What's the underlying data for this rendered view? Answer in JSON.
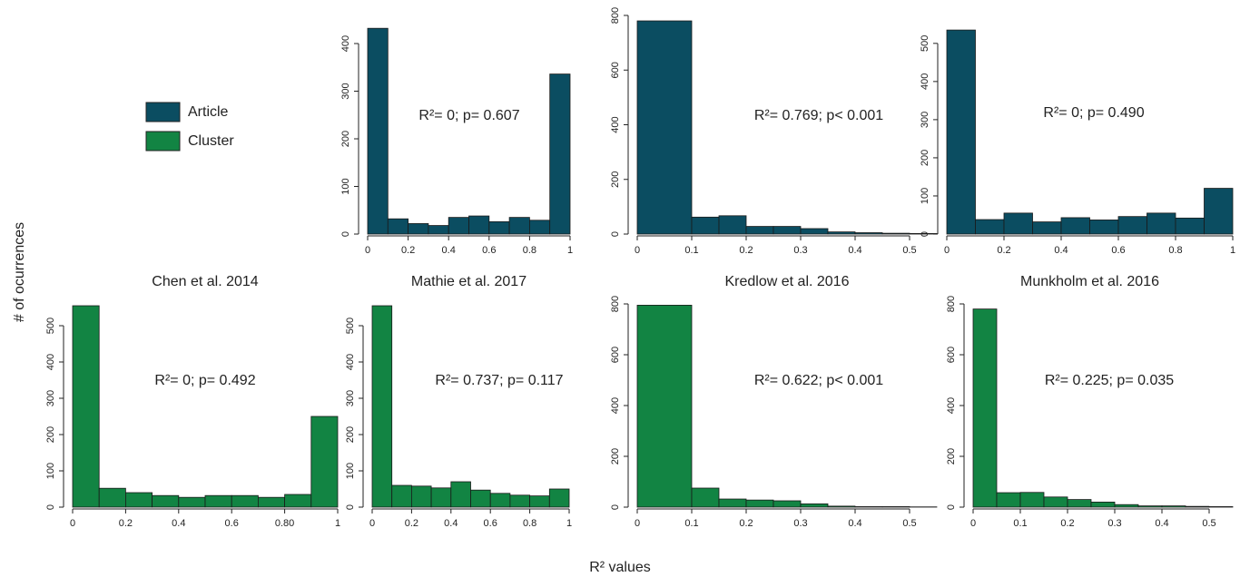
{
  "x_label": "R² values",
  "y_label": "# of ocurrences",
  "chart_data": [
    {
      "type": "histogram",
      "title": "Mathie et al. 2017",
      "annotation": "R²= 0; p= 0.607",
      "series": [
        {
          "name": "Article",
          "color": "#0b4d61",
          "values": [
            432,
            32,
            22,
            18,
            35,
            38,
            26,
            35,
            29,
            336
          ]
        }
      ],
      "bins": [
        0,
        0.1,
        0.2,
        0.3,
        0.4,
        0.5,
        0.6,
        0.7,
        0.8,
        0.9,
        1
      ],
      "xlim": [
        0,
        1
      ],
      "xticks": [
        0,
        0.2,
        0.4,
        0.6,
        0.8,
        1
      ],
      "ylim": [
        0,
        440
      ],
      "yticks": [
        0,
        100,
        200,
        300,
        400
      ]
    },
    {
      "type": "histogram",
      "title": "Kredlow et al. 2016",
      "annotation": "R²= 0.769; p< 0.001",
      "series": [
        {
          "name": "Article",
          "color": "#0b4d61",
          "values": [
            780,
            62,
            67,
            28,
            28,
            20,
            8,
            5,
            3,
            2
          ]
        }
      ],
      "bins": [
        0,
        0.1,
        0.15,
        0.2,
        0.25,
        0.3,
        0.35,
        0.4,
        0.45,
        0.5,
        0.55
      ],
      "xlim": [
        0,
        0.55
      ],
      "xticks": [
        0,
        0.1,
        0.2,
        0.3,
        0.4,
        0.5
      ],
      "ylim": [
        0,
        800
      ],
      "yticks": [
        0,
        200,
        400,
        600,
        800
      ]
    },
    {
      "type": "histogram",
      "title": "Munkholm et al. 2016",
      "annotation": "R²= 0; p= 0.490",
      "series": [
        {
          "name": "Article",
          "color": "#0b4d61",
          "values": [
            535,
            38,
            55,
            32,
            43,
            37,
            46,
            55,
            42,
            120
          ]
        }
      ],
      "bins": [
        0,
        0.1,
        0.2,
        0.3,
        0.4,
        0.5,
        0.6,
        0.7,
        0.8,
        0.9,
        1
      ],
      "xlim": [
        0,
        1
      ],
      "xticks": [
        0,
        0.2,
        0.4,
        0.6,
        0.8,
        1
      ],
      "ylim": [
        0,
        540
      ],
      "yticks": [
        0,
        100,
        200,
        300,
        400,
        500
      ]
    },
    {
      "type": "histogram",
      "title": "Chen et al. 2014",
      "annotation": "R²= 0; p= 0.492",
      "series": [
        {
          "name": "Cluster",
          "color": "#128443",
          "values": [
            555,
            52,
            40,
            32,
            27,
            32,
            32,
            27,
            35,
            250
          ]
        }
      ],
      "bins": [
        0,
        0.1,
        0.2,
        0.3,
        0.4,
        0.5,
        0.6,
        0.7,
        0.8,
        0.9,
        1
      ],
      "xlim": [
        0,
        1
      ],
      "xticks": [
        0,
        0.2,
        0.4,
        0.6,
        {
          "value": 0.8,
          "label": "0.80"
        },
        1
      ],
      "ylim": [
        0,
        560
      ],
      "yticks": [
        0,
        100,
        200,
        300,
        400,
        500
      ]
    },
    {
      "type": "histogram",
      "annotation": "R²= 0.737; p= 0.117",
      "series": [
        {
          "name": "Cluster",
          "color": "#128443",
          "values": [
            555,
            60,
            58,
            53,
            70,
            47,
            38,
            33,
            31,
            50
          ]
        }
      ],
      "bins": [
        0,
        0.1,
        0.2,
        0.3,
        0.4,
        0.5,
        0.6,
        0.7,
        0.8,
        0.9,
        1
      ],
      "xlim": [
        0,
        1
      ],
      "xticks": [
        0,
        0.2,
        0.4,
        0.6,
        0.8,
        1
      ],
      "ylim": [
        0,
        560
      ],
      "yticks": [
        0,
        100,
        200,
        300,
        400,
        500
      ]
    },
    {
      "type": "histogram",
      "annotation": "R²= 0.622; p< 0.001",
      "series": [
        {
          "name": "Cluster",
          "color": "#128443",
          "values": [
            795,
            75,
            32,
            28,
            25,
            13,
            4,
            2,
            2,
            1
          ]
        }
      ],
      "bins": [
        0,
        0.1,
        0.15,
        0.2,
        0.25,
        0.3,
        0.35,
        0.4,
        0.45,
        0.5,
        0.55
      ],
      "xlim": [
        0,
        0.55
      ],
      "xticks": [
        0,
        0.1,
        0.2,
        0.3,
        0.4,
        0.5
      ],
      "ylim": [
        0,
        800
      ],
      "yticks": [
        0,
        200,
        400,
        600,
        800
      ]
    },
    {
      "type": "histogram",
      "annotation": "R²= 0.225; p= 0.035",
      "series": [
        {
          "name": "Cluster",
          "color": "#128443",
          "values": [
            780,
            57,
            58,
            40,
            30,
            20,
            10,
            5,
            5,
            3,
            2
          ]
        }
      ],
      "bins": [
        0,
        0.05,
        0.1,
        0.15,
        0.2,
        0.25,
        0.3,
        0.35,
        0.4,
        0.45,
        0.5,
        0.55
      ],
      "xlim": [
        0,
        0.55
      ],
      "xticks": [
        0,
        0.1,
        0.2,
        0.3,
        0.4,
        0.5
      ],
      "ylim": [
        0,
        800
      ],
      "yticks": [
        0,
        200,
        400,
        600,
        800
      ]
    }
  ]
}
